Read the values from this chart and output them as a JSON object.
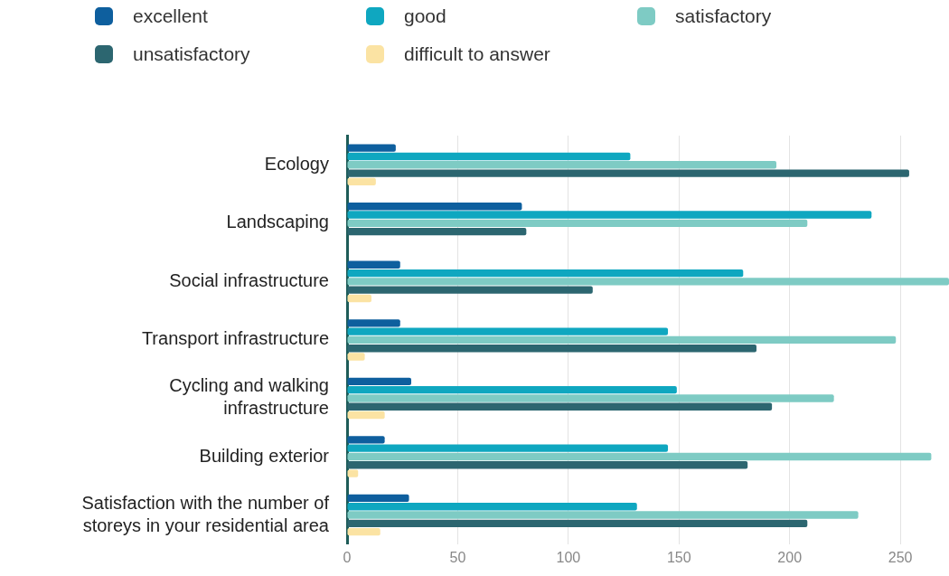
{
  "chart_data": {
    "type": "bar",
    "orientation": "horizontal",
    "categories": [
      "Ecology",
      "Landscaping",
      "Social infrastructure",
      "Transport infrastructure",
      "Cycling and walking\ninfrastructure",
      "Building exterior",
      "Satisfaction with the number of\nstoreys in your residential area"
    ],
    "series": [
      {
        "name": "excellent",
        "color": "#0e5f9e",
        "values": [
          22,
          79,
          24,
          24,
          29,
          17,
          28
        ]
      },
      {
        "name": "good",
        "color": "#0fa7c0",
        "values": [
          128,
          237,
          179,
          145,
          149,
          145,
          131
        ]
      },
      {
        "name": "satisfactory",
        "color": "#7ecbc4",
        "values": [
          194,
          208,
          272,
          248,
          220,
          264,
          231
        ]
      },
      {
        "name": "unsatisfactory",
        "color": "#2c6670",
        "values": [
          254,
          81,
          111,
          185,
          192,
          181,
          208
        ]
      },
      {
        "name": "difficult to answer",
        "color": "#fbe3a3",
        "values": [
          13,
          null,
          11,
          8,
          17,
          5,
          15
        ]
      }
    ],
    "xlim": [
      0,
      272
    ],
    "xticks": [
      0,
      50,
      100,
      150,
      200,
      250
    ],
    "grid": "x",
    "legend": "top"
  }
}
